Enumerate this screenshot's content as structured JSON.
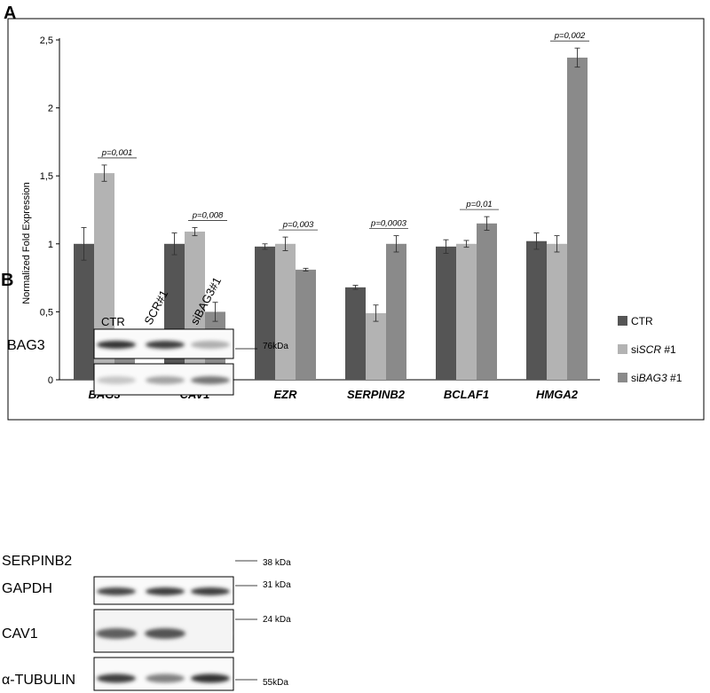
{
  "panels": {
    "a_label": "A",
    "b_label": "B"
  },
  "chart_data": {
    "type": "bar",
    "ylabel": "Normalized Fold Expression",
    "ylim": [
      0,
      2.5
    ],
    "y_ticks": [
      "0",
      "0,5",
      "1",
      "1,5",
      "2",
      "2,5"
    ],
    "y_tick_values": [
      0,
      0.5,
      1,
      1.5,
      2,
      2.5
    ],
    "categories": [
      "BAG3",
      "CAV1",
      "EZR",
      "SERPINB2",
      "BCLAF1",
      "HMGA2"
    ],
    "legend_position": "right",
    "series": [
      {
        "legend_prefix": "CTR",
        "legend_italic": "",
        "legend_suffix": "",
        "color": "#555555",
        "values": [
          1.0,
          1.0,
          0.98,
          0.68,
          0.98,
          1.02
        ],
        "errors": [
          0.12,
          0.08,
          0.02,
          0.015,
          0.05,
          0.06
        ]
      },
      {
        "legend_prefix": "si",
        "legend_italic": "SCR",
        "legend_suffix": " #1",
        "color": "#b3b3b3",
        "values": [
          1.52,
          1.09,
          1.0,
          0.49,
          1.0,
          1.0
        ],
        "errors": [
          0.06,
          0.03,
          0.05,
          0.06,
          0.025,
          0.06
        ]
      },
      {
        "legend_prefix": "si",
        "legend_italic": "BAG3",
        "legend_suffix": " #1",
        "color": "#8a8a8a",
        "values": [
          0.22,
          0.5,
          0.81,
          1.0,
          1.15,
          2.37
        ],
        "errors": [
          0.035,
          0.07,
          0.01,
          0.06,
          0.05,
          0.07
        ]
      }
    ],
    "pvalues": [
      "p=0,001",
      "p=0,008",
      "p=0,003",
      "p=0,0003",
      "p=0,01",
      "p=0,002"
    ]
  },
  "blot": {
    "lanes": [
      "CTR",
      "SCR#1",
      "siBAG3#1"
    ],
    "rows": [
      {
        "label": "BAG3",
        "marker": "76kDa",
        "intensity": [
          0.9,
          0.85,
          0.35
        ]
      },
      {
        "label": "SERPINB2",
        "marker": "38 kDa",
        "intensity": [
          0.25,
          0.4,
          0.6
        ]
      },
      {
        "label": "GAPDH",
        "marker": "31 kDa",
        "intensity": [
          0.8,
          0.85,
          0.85
        ]
      },
      {
        "label": "CAV1",
        "marker": "24 kDa",
        "intensity": [
          0.7,
          0.75,
          0.05
        ]
      },
      {
        "label": "α-TUBULIN",
        "marker": "55kDa",
        "intensity": [
          0.85,
          0.55,
          0.9
        ]
      }
    ]
  }
}
